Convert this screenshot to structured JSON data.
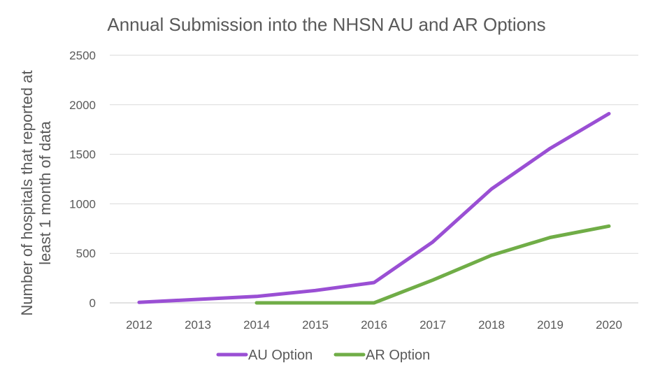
{
  "chart_data": {
    "type": "line",
    "title": "Annual Submission into the NHSN AU and AR Options",
    "xlabel": "",
    "ylabel_lines": [
      "Number of hospitals that reported at",
      "least 1 month of data"
    ],
    "categories": [
      "2012",
      "2013",
      "2014",
      "2015",
      "2016",
      "2017",
      "2018",
      "2019",
      "2020"
    ],
    "ylim": [
      0,
      2500
    ],
    "yticks": [
      "0",
      "500",
      "1000",
      "1500",
      "2000",
      "2500"
    ],
    "grid": true,
    "legend": "bottom",
    "series": [
      {
        "name": "AU Option",
        "color": "#9a4fd4",
        "values": [
          5,
          35,
          65,
          125,
          205,
          615,
          1150,
          1560,
          1910
        ]
      },
      {
        "name": "AR Option",
        "color": "#70ad47",
        "values": [
          null,
          null,
          0,
          0,
          0,
          230,
          480,
          660,
          775
        ]
      }
    ]
  }
}
